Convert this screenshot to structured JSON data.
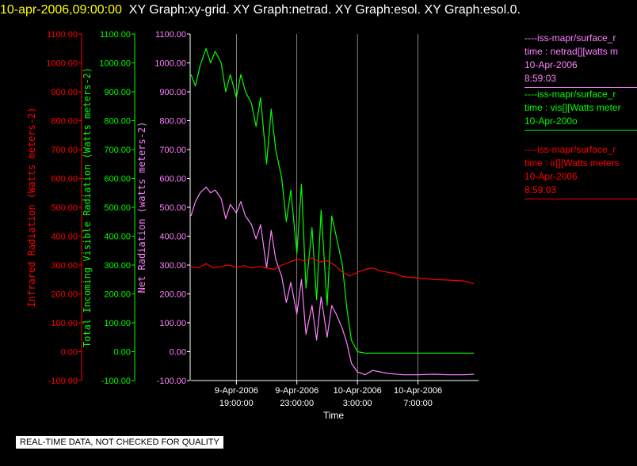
{
  "header": {
    "timestamp": "10-apr-2006,09:00:00",
    "graphs": "XY Graph:xy-grid.  XY Graph:netrad.  XY Graph:esol.  XY Graph:esol.0."
  },
  "legend": {
    "netrad": [
      "----iss-mapr/surface_r",
      "time : netrad[][watts m",
      "10-Apr-2006",
      "8:59:03"
    ],
    "esol": [
      "----iss-mapr/surface_r",
      "time : vis[][Watts meter",
      "10-Apr-200o"
    ],
    "ir": [
      "----iss-mapr/surface_r",
      "time : ir[][Watts meters",
      "10-Apr-2006",
      "8:59:03"
    ]
  },
  "notice": "REAL-TIME DATA, NOT CHECKED FOR QUALITY",
  "colors": {
    "ir": "#ff0000",
    "vis": "#00ff00",
    "net": "#ff80ff",
    "grid": "#ffffff",
    "timestamp": "#ffff00"
  },
  "chart_data": {
    "type": "line",
    "title": "",
    "xlabel": "Time",
    "x_ticks": [
      {
        "t": 19,
        "line1": "9-Apr-2006",
        "line2": "19:00:00"
      },
      {
        "t": 23,
        "line1": "9-Apr-2006",
        "line2": "23:00:00"
      },
      {
        "t": 27,
        "line1": "10-Apr-2006",
        "line2": "3:00:00"
      },
      {
        "t": 31,
        "line1": "10-Apr-2006",
        "line2": "7:00:00"
      }
    ],
    "xlim": [
      16,
      35
    ],
    "ylim": [
      -100,
      1100
    ],
    "y_ticks": [
      "1100.00",
      "1000.00",
      "900.00",
      "800.00",
      "700.00",
      "600.00",
      "500.00",
      "400.00",
      "300.00",
      "200.00",
      "100.00",
      "0.00",
      "-100.00"
    ],
    "y_tick_values": [
      1100,
      1000,
      900,
      800,
      700,
      600,
      500,
      400,
      300,
      200,
      100,
      0,
      -100
    ],
    "grid": true,
    "axes": [
      {
        "id": "ir",
        "label": "Infrared Radiation (Watts meters-2)",
        "color": "#ff0000"
      },
      {
        "id": "vis",
        "label": "Total Incoming Visible Radiation (Watts meters-2)",
        "color": "#00ff00"
      },
      {
        "id": "net",
        "label": "Net Radiation (watts meters-2)",
        "color": "#ff80ff"
      }
    ],
    "series": [
      {
        "id": "vis",
        "color": "#00ff00",
        "x": [
          16.0,
          16.3,
          16.6,
          17.0,
          17.3,
          17.6,
          18.0,
          18.3,
          18.6,
          19.0,
          19.3,
          19.6,
          20.0,
          20.3,
          20.6,
          21.0,
          21.3,
          21.6,
          22.0,
          22.3,
          22.6,
          23.0,
          23.3,
          23.6,
          24.0,
          24.3,
          24.6,
          25.0,
          25.3,
          25.6,
          26.0,
          26.3,
          26.6,
          27.0,
          27.5,
          28.0,
          29.0,
          30.0,
          31.0,
          32.0,
          33.0,
          34.0,
          34.7
        ],
        "y": [
          960,
          920,
          990,
          1050,
          1000,
          1040,
          1000,
          900,
          960,
          880,
          960,
          900,
          860,
          780,
          880,
          650,
          840,
          700,
          600,
          450,
          560,
          340,
          580,
          220,
          430,
          180,
          490,
          160,
          470,
          400,
          300,
          150,
          40,
          0,
          -5,
          -5,
          -5,
          -5,
          -5,
          -5,
          -5,
          -5,
          -5
        ]
      },
      {
        "id": "net",
        "color": "#ff80ff",
        "x": [
          16.0,
          16.3,
          16.6,
          17.0,
          17.3,
          17.6,
          18.0,
          18.3,
          18.6,
          19.0,
          19.3,
          19.6,
          20.0,
          20.3,
          20.6,
          21.0,
          21.3,
          21.6,
          22.0,
          22.3,
          22.6,
          23.0,
          23.3,
          23.6,
          24.0,
          24.3,
          24.6,
          25.0,
          25.3,
          25.6,
          26.0,
          26.3,
          26.6,
          27.0,
          27.5,
          28.0,
          29.0,
          30.0,
          31.0,
          32.0,
          33.0,
          34.0,
          34.7
        ],
        "y": [
          470,
          520,
          550,
          570,
          550,
          560,
          530,
          460,
          510,
          480,
          520,
          470,
          440,
          390,
          440,
          290,
          420,
          320,
          260,
          170,
          240,
          130,
          250,
          60,
          160,
          40,
          190,
          50,
          160,
          130,
          80,
          30,
          -40,
          -70,
          -80,
          -65,
          -75,
          -80,
          -80,
          -78,
          -80,
          -80,
          -78
        ]
      },
      {
        "id": "ir",
        "color": "#ff0000",
        "x": [
          16.0,
          16.5,
          17.0,
          17.5,
          18.0,
          18.5,
          19.0,
          19.5,
          20.0,
          20.5,
          21.0,
          21.5,
          22.0,
          22.5,
          23.0,
          23.5,
          24.0,
          24.5,
          25.0,
          25.5,
          26.0,
          26.5,
          27.0,
          27.5,
          28.0,
          28.5,
          29.0,
          29.5,
          30.0,
          31.0,
          32.0,
          33.0,
          34.0,
          34.7
        ],
        "y": [
          295,
          290,
          305,
          290,
          295,
          300,
          292,
          298,
          290,
          295,
          290,
          285,
          300,
          310,
          320,
          315,
          325,
          310,
          315,
          300,
          275,
          262,
          275,
          285,
          290,
          280,
          275,
          270,
          260,
          255,
          250,
          248,
          245,
          235
        ]
      }
    ]
  }
}
